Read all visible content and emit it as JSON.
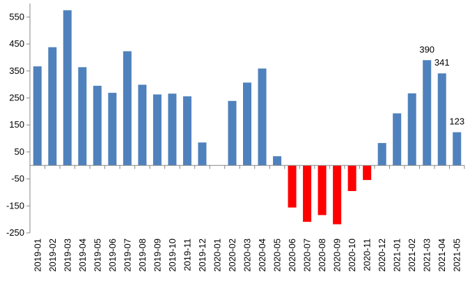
{
  "chart_data": {
    "type": "bar",
    "title": "",
    "xlabel": "",
    "ylabel": "",
    "ylim": [
      -250,
      600
    ],
    "yticks": [
      -250,
      -150,
      -50,
      50,
      150,
      250,
      350,
      450,
      550
    ],
    "grid": false,
    "legend": "none",
    "categories": [
      "2019-01",
      "2019-02",
      "2019-03",
      "2019-04",
      "2019-05",
      "2019-06",
      "2019-07",
      "2019-08",
      "2019-09",
      "2019-10",
      "2019-11",
      "2019-12",
      "2020-01",
      "2020-02",
      "2020-03",
      "2020-04",
      "2020-05",
      "2020-06",
      "2020-07",
      "2020-08",
      "2020-09",
      "2020-10",
      "2020-11",
      "2020-12",
      "2021-01",
      "2021-02",
      "2021-03",
      "2021-04",
      "2021-05"
    ],
    "values": [
      367,
      438,
      575,
      364,
      295,
      269,
      423,
      299,
      263,
      266,
      256,
      85,
      null,
      239,
      307,
      359,
      34,
      -156,
      -209,
      -184,
      -218,
      -95,
      -54,
      83,
      193,
      267,
      390,
      341,
      123
    ],
    "data_labels": {
      "26": "390",
      "27": "341",
      "28": "123"
    },
    "colors": {
      "positive": "#4f81bd",
      "negative": "#ff0000",
      "axis": "#868686"
    }
  }
}
